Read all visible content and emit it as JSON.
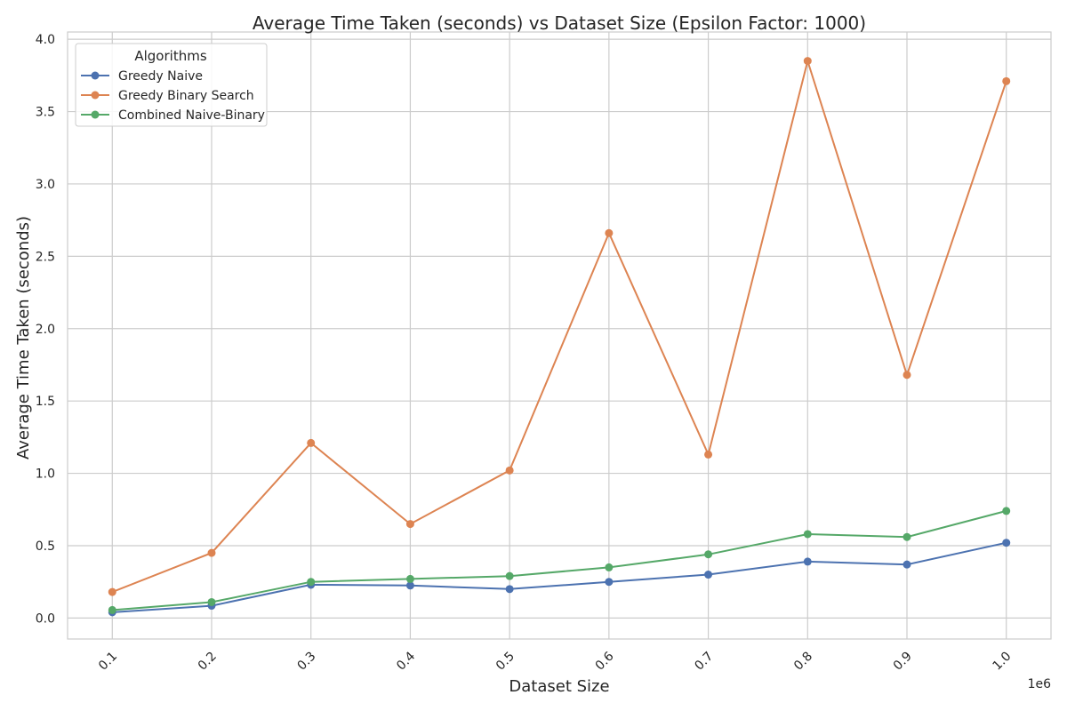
{
  "chart_data": {
    "type": "line",
    "title": "Average Time Taken (seconds) vs Dataset Size (Epsilon Factor: 1000)",
    "xlabel": "Dataset Size",
    "ylabel": "Average Time Taken (seconds)",
    "x_offset_label": "1e6",
    "x": [
      0.1,
      0.2,
      0.3,
      0.4,
      0.5,
      0.6,
      0.7,
      0.8,
      0.9,
      1.0
    ],
    "x_tick_labels": [
      "0.1",
      "0.2",
      "0.3",
      "0.4",
      "0.5",
      "0.6",
      "0.7",
      "0.8",
      "0.9",
      "1.0"
    ],
    "xlim": [
      0.055,
      1.045
    ],
    "ylim": [
      -0.145,
      4.05
    ],
    "y_ticks": [
      0.0,
      0.5,
      1.0,
      1.5,
      2.0,
      2.5,
      3.0,
      3.5,
      4.0
    ],
    "y_tick_labels": [
      "0.0",
      "0.5",
      "1.0",
      "1.5",
      "2.0",
      "2.5",
      "3.0",
      "3.5",
      "4.0"
    ],
    "grid": true,
    "legend": {
      "title": "Algorithms",
      "placement": "top-left"
    },
    "series": [
      {
        "name": "Greedy Naive",
        "color": "#4c72b0",
        "values": [
          0.04,
          0.085,
          0.23,
          0.225,
          0.2,
          0.25,
          0.3,
          0.39,
          0.37,
          0.52
        ]
      },
      {
        "name": "Greedy Binary Search",
        "color": "#dd8452",
        "values": [
          0.18,
          0.45,
          1.21,
          0.65,
          1.02,
          2.66,
          1.13,
          3.85,
          1.68,
          3.71
        ]
      },
      {
        "name": "Combined Naive-Binary",
        "color": "#55a868",
        "values": [
          0.055,
          0.11,
          0.25,
          0.27,
          0.29,
          0.35,
          0.44,
          0.58,
          0.56,
          0.74
        ]
      }
    ]
  }
}
